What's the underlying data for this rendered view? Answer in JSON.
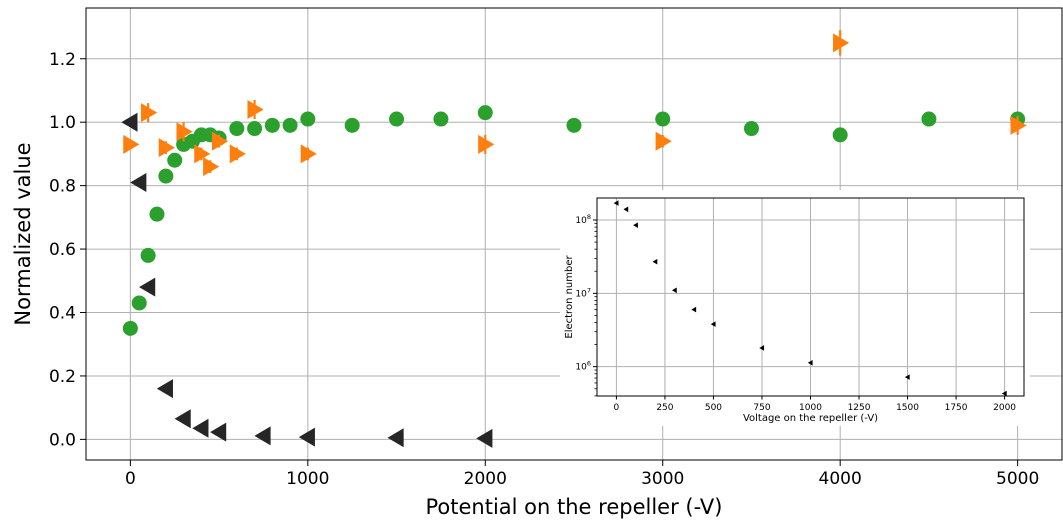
{
  "chart_data": [
    {
      "type": "scatter",
      "xlabel": "Potential on the repeller (-V)",
      "ylabel": "Normalized value",
      "xlim": [
        -250,
        5250
      ],
      "ylim": [
        -0.065,
        1.36
      ],
      "xticks": [
        0,
        1000,
        2000,
        3000,
        4000,
        5000
      ],
      "xtick_labels": [
        "0",
        "1000",
        "2000",
        "3000",
        "4000",
        "5000"
      ],
      "yticks": [
        0.0,
        0.2,
        0.4,
        0.6,
        0.8,
        1.0,
        1.2
      ],
      "ytick_labels": [
        "0.0",
        "0.2",
        "0.4",
        "0.6",
        "0.8",
        "1.0",
        "1.2"
      ],
      "grid": true,
      "series": [
        {
          "marker": "circle",
          "color": "#2ca02c",
          "x": [
            0,
            50,
            100,
            150,
            200,
            250,
            300,
            350,
            400,
            450,
            500,
            600,
            700,
            800,
            900,
            1000,
            1250,
            1500,
            1750,
            2000,
            2500,
            3000,
            3500,
            4000,
            4500,
            5000
          ],
          "y": [
            0.35,
            0.43,
            0.58,
            0.71,
            0.83,
            0.88,
            0.93,
            0.94,
            0.96,
            0.96,
            0.95,
            0.98,
            0.98,
            0.99,
            0.99,
            1.01,
            0.99,
            1.01,
            1.01,
            1.03,
            0.99,
            1.01,
            0.98,
            0.96,
            1.01,
            1.01
          ]
        },
        {
          "marker": "triangle-right",
          "color": "#ff7f0e",
          "x": [
            0,
            100,
            200,
            300,
            400,
            450,
            500,
            600,
            700,
            1000,
            2000,
            3000,
            4000,
            5000
          ],
          "y": [
            0.93,
            1.03,
            0.92,
            0.97,
            0.9,
            0.86,
            0.94,
            0.9,
            1.04,
            0.9,
            0.93,
            0.94,
            1.25,
            0.99
          ],
          "yerr": [
            0.01,
            0.03,
            0.02,
            0.03,
            0.02,
            0.02,
            0.02,
            0.02,
            0.03,
            0.02,
            0.03,
            0.02,
            0.04,
            0.03
          ]
        },
        {
          "marker": "triangle-left",
          "color": "#262626",
          "x": [
            0,
            50,
            100,
            200,
            300,
            400,
            500,
            750,
            1000,
            1500,
            2000
          ],
          "y": [
            1.0,
            0.81,
            0.48,
            0.16,
            0.065,
            0.035,
            0.023,
            0.011,
            0.007,
            0.005,
            0.003
          ]
        }
      ]
    },
    {
      "type": "scatter",
      "xlabel": "Voltage on the repeller (-V)",
      "ylabel": "Electron number",
      "yscale": "log",
      "xlim": [
        -100,
        2100
      ],
      "ylim_log10": [
        5.6,
        8.3
      ],
      "xticks": [
        0,
        250,
        500,
        750,
        1000,
        1250,
        1500,
        1750,
        2000
      ],
      "xtick_labels": [
        "0",
        "250",
        "500",
        "750",
        "1000",
        "1250",
        "1500",
        "1750",
        "2000"
      ],
      "yticks_log10": [
        6,
        7,
        8
      ],
      "ytick_labels": [
        {
          "base": "10",
          "exp": "6"
        },
        {
          "base": "10",
          "exp": "7"
        },
        {
          "base": "10",
          "exp": "8"
        }
      ],
      "grid": true,
      "series": [
        {
          "marker": "triangle-left",
          "color": "#000000",
          "x": [
            0,
            50,
            100,
            200,
            300,
            400,
            500,
            750,
            1000,
            1500,
            2000
          ],
          "y": [
            170000000,
            140000000,
            85000000,
            27000000,
            11000000,
            6000000,
            3800000,
            1800000,
            1130000,
            720000,
            430000
          ]
        }
      ]
    }
  ]
}
